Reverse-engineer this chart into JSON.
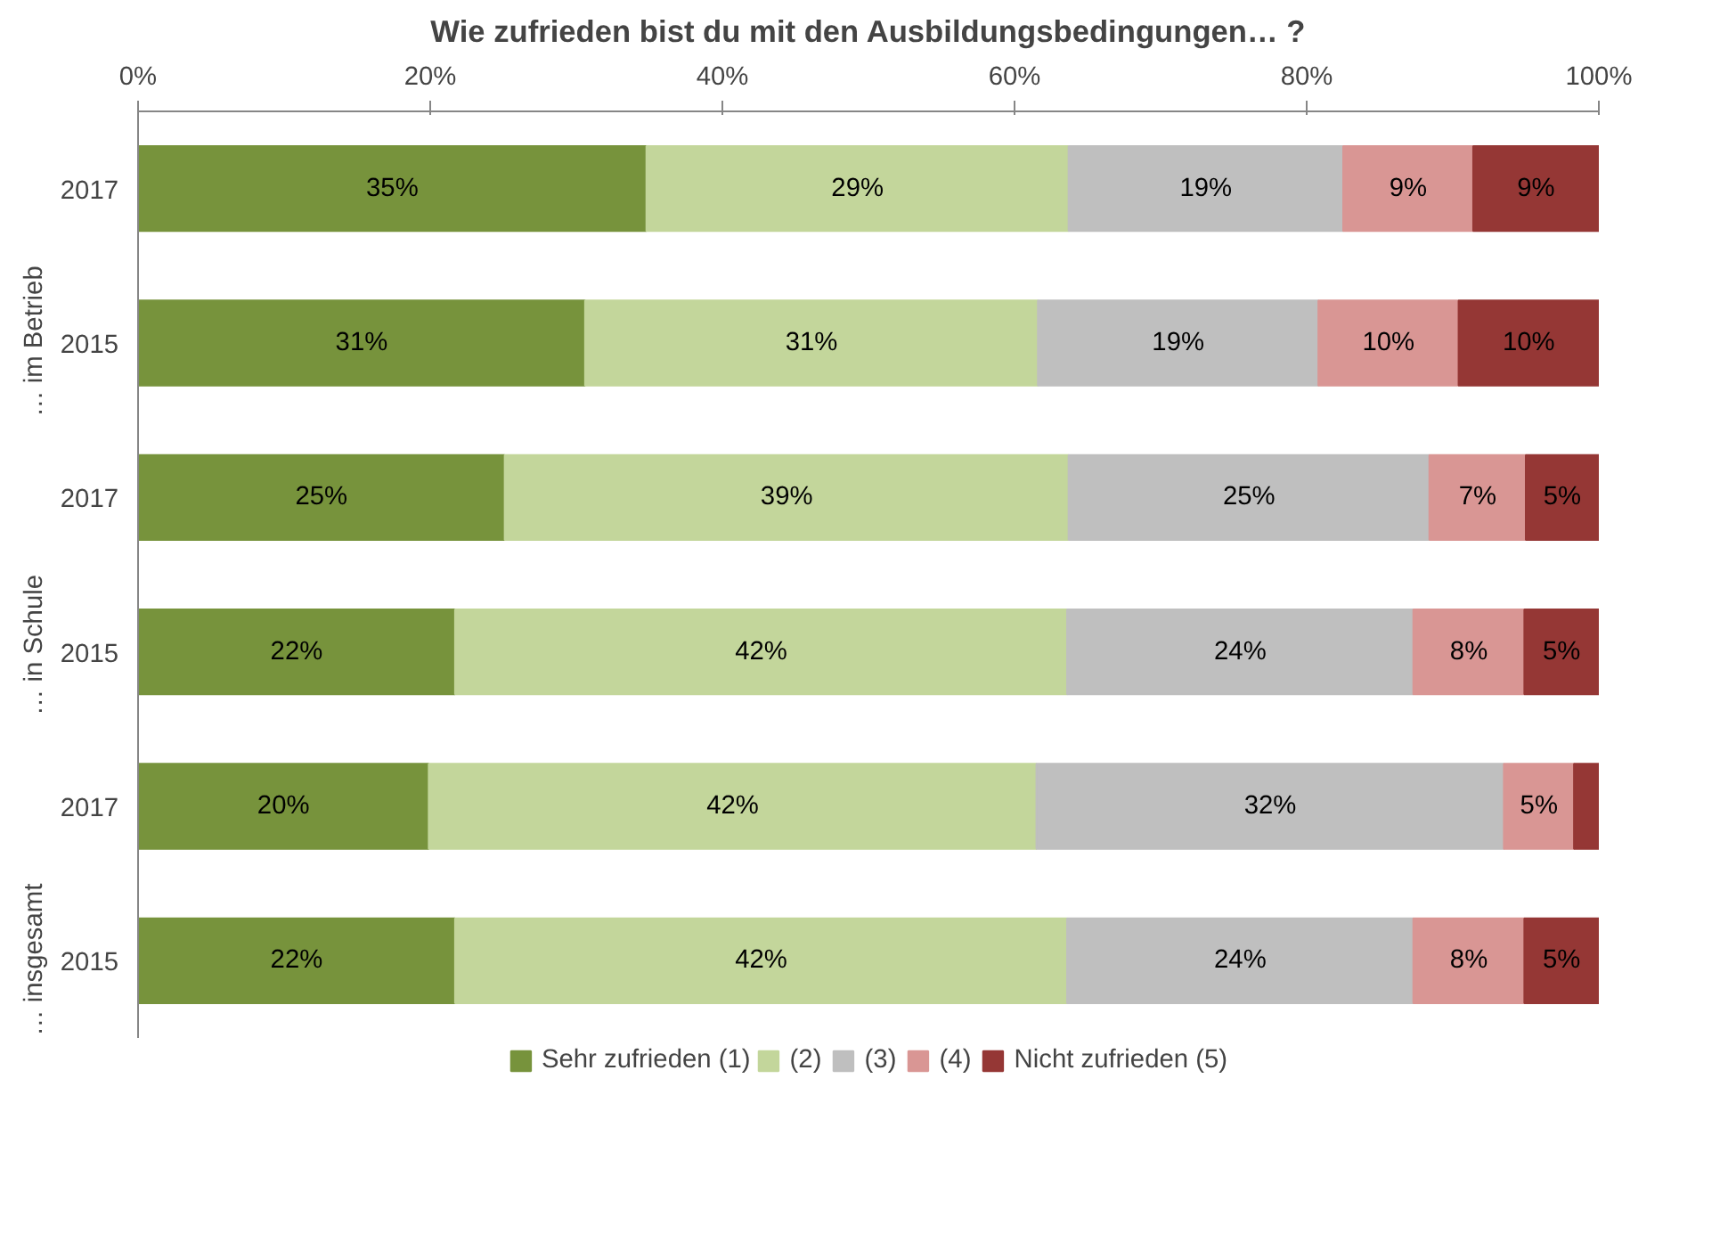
{
  "chart_data": {
    "type": "bar",
    "orientation": "horizontal",
    "stacked": true,
    "title": "Wie zufrieden bist du mit den Ausbildungsbedingungen… ?",
    "categories": [
      "2017",
      "2015",
      "2017",
      "2015",
      "2017",
      "2015"
    ],
    "annotations": [
      "… im Betrieb",
      "… in Schule",
      "… insgesamt"
    ],
    "xlim": [
      0,
      100
    ],
    "xticks": [
      {
        "value": 0,
        "label": "0%"
      },
      {
        "value": 20,
        "label": "20%"
      },
      {
        "value": 40,
        "label": "40%"
      },
      {
        "value": 60,
        "label": "60%"
      },
      {
        "value": 80,
        "label": "80%"
      },
      {
        "value": 100,
        "label": "100%"
      }
    ],
    "grid": false,
    "legend": "bottom",
    "series": [
      {
        "name": "Sehr zufrieden (1)",
        "color": "#77933c",
        "values": [
          34.8,
          30.6,
          25.1,
          21.7,
          19.9,
          21.7
        ],
        "value_labels": [
          "35%",
          "31%",
          "25%",
          "22%",
          "20%",
          "22%"
        ]
      },
      {
        "name": "(2)",
        "color": "#c3d69b",
        "values": [
          28.9,
          31.0,
          38.6,
          41.9,
          41.6,
          41.9
        ],
        "value_labels": [
          "29%",
          "31%",
          "39%",
          "42%",
          "42%",
          "42%"
        ]
      },
      {
        "name": "(3)",
        "color": "#bfbfbf",
        "values": [
          18.8,
          19.2,
          24.7,
          23.7,
          32.0,
          23.7
        ],
        "value_labels": [
          "19%",
          "19%",
          "25%",
          "24%",
          "32%",
          "24%"
        ]
      },
      {
        "name": "(4)",
        "color": "#d99694",
        "values": [
          8.9,
          9.6,
          6.6,
          7.6,
          4.8,
          7.6
        ],
        "value_labels": [
          "9%",
          "10%",
          "7%",
          "8%",
          "5%",
          "8%"
        ]
      },
      {
        "name": "Nicht zufrieden (5)",
        "color": "#953735",
        "values": [
          8.6,
          9.6,
          5.0,
          5.1,
          1.7,
          5.1
        ],
        "value_labels": [
          "9%",
          "10%",
          "5%",
          "5%",
          null,
          "5%"
        ]
      }
    ]
  }
}
